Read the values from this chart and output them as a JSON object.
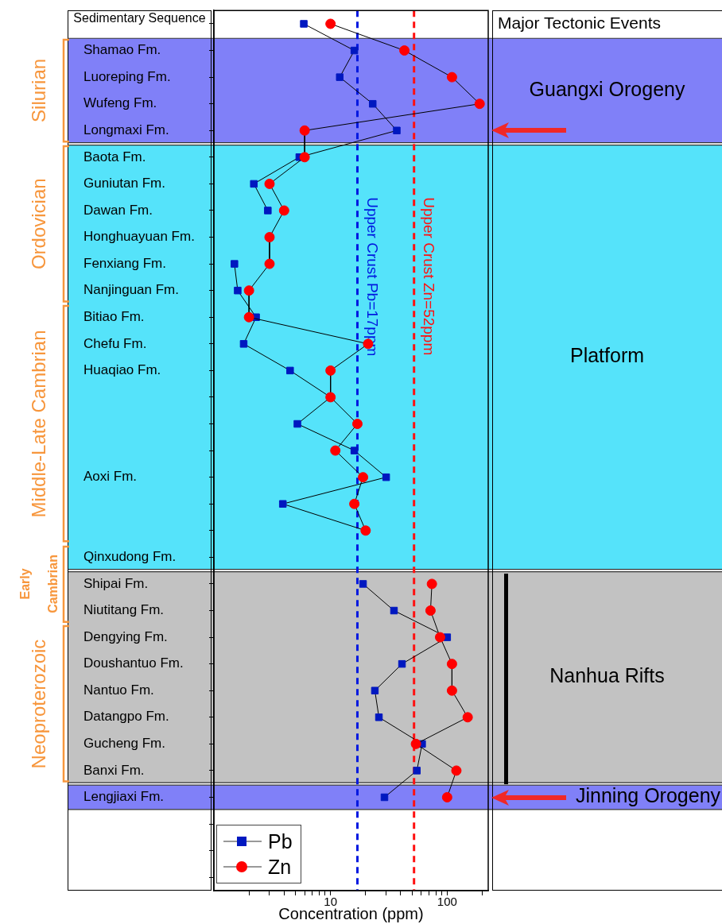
{
  "chart_data": {
    "type": "line",
    "orientation": "horizontal",
    "xlabel": "Concentration (ppm)",
    "annotations": [
      "Sedimentary Sequence",
      "Major Tectonic Events",
      "Silurian",
      "Ordovician",
      "Middle-Late Cambrian",
      "Early Cambrian",
      "Neoproterozoic"
    ],
    "categories": [
      null,
      "Shamao Fm.",
      "Luoreping Fm.",
      "Wufeng Fm.",
      "Longmaxi Fm.",
      "Baota Fm.",
      "Guniutan Fm.",
      "Dawan Fm.",
      "Honghuayuan Fm.",
      "Fenxiang Fm.",
      "Nanjinguan Fm.",
      "Bitiao Fm.",
      "Chefu Fm.",
      "Huaqiao Fm.",
      null,
      null,
      null,
      "Aoxi Fm.",
      null,
      null,
      "Qinxudong Fm.",
      "Shipai Fm.",
      "Niutitang Fm.",
      "Dengying Fm.",
      "Doushantuo Fm.",
      "Nantuo Fm.",
      "Datangpo Fm.",
      "Gucheng Fm.",
      "Banxi Fm.",
      "Lengjiaxi Fm.",
      null,
      null,
      null
    ],
    "log": "x",
    "xlim": [
      1,
      225
    ],
    "xticks": [
      {
        "value": 2,
        "label": null
      },
      {
        "value": 3,
        "label": null
      },
      {
        "value": 4,
        "label": null
      },
      {
        "value": 5,
        "label": null
      },
      {
        "value": 6,
        "label": null
      },
      {
        "value": 7,
        "label": null
      },
      {
        "value": 8,
        "label": null
      },
      {
        "value": 9,
        "label": null
      },
      10,
      {
        "value": 20,
        "label": null
      },
      {
        "value": 30,
        "label": null
      },
      {
        "value": 40,
        "label": null
      },
      {
        "value": 50,
        "label": null
      },
      {
        "value": 60,
        "label": null
      },
      {
        "value": 70,
        "label": null
      },
      {
        "value": 80,
        "label": null
      },
      {
        "value": 90,
        "label": null
      },
      100,
      {
        "value": 200,
        "label": null
      }
    ],
    "series": [
      {
        "name": "Pb",
        "color": "#0018c0",
        "marker": "square",
        "values": [
          5.9,
          16,
          12,
          23,
          37,
          5.4,
          2.2,
          2.9,
          null,
          1.5,
          1.6,
          2.3,
          1.8,
          4.5,
          10,
          5.2,
          16,
          30,
          3.9,
          20,
          null,
          19,
          35,
          100,
          41,
          24,
          26,
          61,
          55,
          29,
          null,
          null,
          null
        ]
      },
      {
        "name": "Zn",
        "color": "#ff0000",
        "marker": "circle",
        "values": [
          10,
          43,
          110,
          190,
          6,
          6,
          3,
          4,
          3,
          3,
          2,
          2,
          21,
          10,
          10,
          17,
          11,
          19,
          16,
          20,
          null,
          74,
          72,
          87,
          110,
          110,
          150,
          54,
          120,
          100,
          null,
          null,
          null
        ]
      }
    ],
    "ref_lines": [
      {
        "axis": "x",
        "value": 17,
        "label": "Upper Crust Pb=17ppm",
        "color": "#0018e0",
        "line_style": "dashed"
      },
      {
        "axis": "x",
        "value": 52,
        "label": "Upper Crust Zn=52ppm",
        "color": "#ff1010",
        "line_style": "dashed"
      }
    ],
    "bands": [
      {
        "axis": "y",
        "from": "Shamao Fm.",
        "to": "Longmaxi Fm.",
        "label": "Guangxi Orogeny",
        "color": "#8080f8"
      },
      {
        "axis": "y",
        "from": "Baota Fm.",
        "to": "Qinxudong Fm.",
        "label": "Platform",
        "color": "#55e3fa"
      },
      {
        "axis": "y",
        "from": "Shipai Fm.",
        "to": "Banxi Fm.",
        "label": "Nanhua Rifts",
        "color": "#c2c2c2"
      },
      {
        "axis": "y",
        "from": "Lengjiaxi Fm.",
        "to": "Lengjiaxi Fm.",
        "label": "Jinning Orogeny",
        "color": "#8080f8"
      }
    ],
    "legend": "bottom left"
  }
}
